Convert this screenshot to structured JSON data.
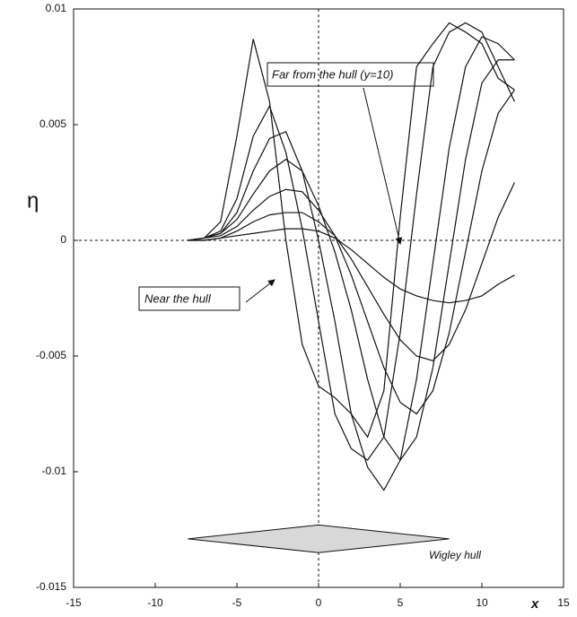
{
  "chart_data": {
    "type": "line",
    "y_label": "η",
    "x_label": "x",
    "annotations": [
      "Far from the hull (y=10)",
      "Near the hull"
    ],
    "x": [
      -8,
      -7,
      -6,
      -5,
      -4,
      -3,
      -2,
      -1,
      0,
      1,
      2,
      3,
      4,
      5,
      6,
      7,
      8,
      9,
      10,
      11,
      12
    ],
    "series": [
      {
        "color": "#111111",
        "values": [
          0,
          0.0001,
          0.0008,
          0.0045,
          0.0087,
          0.006,
          0.0,
          -0.0045,
          -0.0063,
          -0.0068,
          -0.0075,
          -0.0085,
          -0.0065,
          0.001,
          0.0075,
          0.0085,
          0.0094,
          0.009,
          0.0085,
          0.007,
          0.0065
        ]
      },
      {
        "color": "#111111",
        "values": [
          0,
          0.0001,
          0.0004,
          0.0018,
          0.0045,
          0.0058,
          0.0038,
          0.0005,
          -0.0035,
          -0.0075,
          -0.009,
          -0.0095,
          -0.0085,
          -0.004,
          0.002,
          0.0075,
          0.009,
          0.0094,
          0.009,
          0.0075,
          0.006
        ]
      },
      {
        "color": "#111111",
        "values": [
          0,
          0.0001,
          0.0003,
          0.0012,
          0.003,
          0.0044,
          0.0047,
          0.003,
          0.0,
          -0.0035,
          -0.0075,
          -0.0098,
          -0.0108,
          -0.0095,
          -0.006,
          -0.001,
          0.004,
          0.0075,
          0.0088,
          0.0085,
          0.0078
        ]
      },
      {
        "color": "#111111",
        "values": [
          0,
          0.0001,
          0.0003,
          0.0009,
          0.002,
          0.003,
          0.0035,
          0.003,
          0.0015,
          -0.0005,
          -0.003,
          -0.006,
          -0.0085,
          -0.0095,
          -0.0085,
          -0.0055,
          -0.001,
          0.0035,
          0.0068,
          0.0078,
          0.0078
        ]
      },
      {
        "color": "#111111",
        "values": [
          0,
          0.0001,
          0.0002,
          0.0006,
          0.0013,
          0.0019,
          0.0022,
          0.0021,
          0.0013,
          0.0002,
          -0.0015,
          -0.0035,
          -0.0055,
          -0.007,
          -0.0075,
          -0.0065,
          -0.004,
          -0.0005,
          0.003,
          0.0055,
          0.0065
        ]
      },
      {
        "color": "#111111",
        "values": [
          0,
          0,
          0.0001,
          0.0004,
          0.0008,
          0.0011,
          0.0012,
          0.0012,
          0.0008,
          0.0002,
          -0.0008,
          -0.002,
          -0.0032,
          -0.0043,
          -0.005,
          -0.0052,
          -0.0045,
          -0.003,
          -0.001,
          0.001,
          0.0025
        ]
      },
      {
        "color": "#111111",
        "values": [
          0,
          0,
          0.0001,
          0.0002,
          0.0003,
          0.0004,
          0.0005,
          0.0005,
          0.0004,
          0.0001,
          -0.0004,
          -0.001,
          -0.0016,
          -0.0021,
          -0.0024,
          -0.0026,
          -0.0027,
          -0.0026,
          -0.0024,
          -0.0019,
          -0.0015
        ]
      }
    ],
    "hull": {
      "label": "Wigley hull",
      "x": [
        -8,
        0,
        8,
        0
      ],
      "y": [
        -0.0129,
        -0.0123,
        -0.0129,
        -0.0135
      ],
      "color": "#d8d8d8"
    },
    "xlim": [
      -15,
      15
    ],
    "xticks": [
      -15,
      -10,
      -5,
      0,
      5,
      10,
      15
    ],
    "ylim": [
      -0.015,
      0.01
    ],
    "yticks": [
      -0.015,
      -0.01,
      -0.005,
      0,
      0.005,
      0.01
    ]
  }
}
